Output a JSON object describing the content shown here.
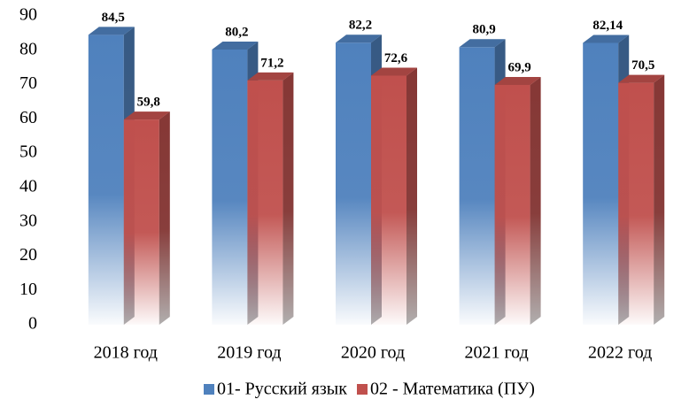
{
  "chart_data": {
    "type": "bar3d",
    "categories": [
      "2018 год",
      "2019 год",
      "2020 год",
      "2021 год",
      "2022 год"
    ],
    "series": [
      {
        "name": "01- Русский язык",
        "color": "#4f81bd",
        "values": [
          84.5,
          80.2,
          82.2,
          80.9,
          82.14
        ],
        "value_labels": [
          "84,5",
          "80,2",
          "82,2",
          "80,9",
          "82,14"
        ]
      },
      {
        "name": "02 - Математика (ПУ)",
        "color": "#c0504d",
        "values": [
          59.8,
          71.2,
          72.6,
          69.9,
          70.5
        ],
        "value_labels": [
          "59,8",
          "71,2",
          "72,6",
          "69,9",
          "70,5"
        ]
      }
    ],
    "ylim": [
      0,
      90
    ],
    "yticks": [
      0,
      10,
      20,
      30,
      40,
      50,
      60,
      70,
      80,
      90
    ],
    "legend": "bottom"
  }
}
